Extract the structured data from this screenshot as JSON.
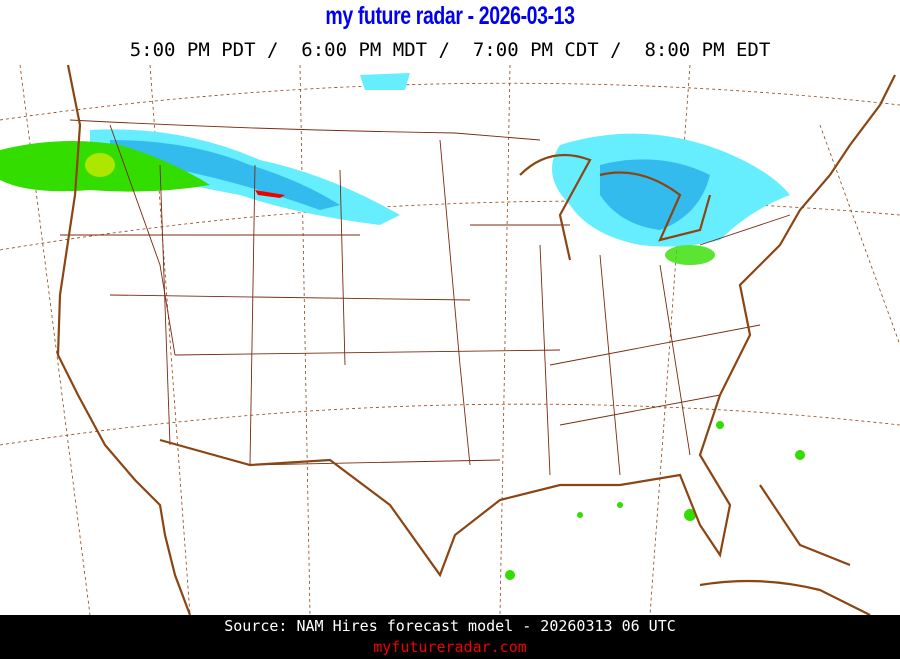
{
  "header": {
    "title": "my future radar - 2026-03-13",
    "times": "5:00 PM PDT /  6:00 PM MDT /  7:00 PM CDT /  8:00 PM EDT"
  },
  "footer": {
    "source": "Source: NAM Hires forecast model - 20260313 06 UTC",
    "site": "myfutureradar.com"
  },
  "colors": {
    "title": "#0000ee",
    "border": "#8b4513",
    "state_lines": "#7a2a10",
    "radar_light": "#66eeff",
    "radar_mid": "#33bbee",
    "radar_heavy": "#2299dd",
    "rain_green": "#33dd00",
    "rain_yellow": "#ffee00",
    "rain_red": "#ee0000",
    "site": "#ee0000"
  }
}
